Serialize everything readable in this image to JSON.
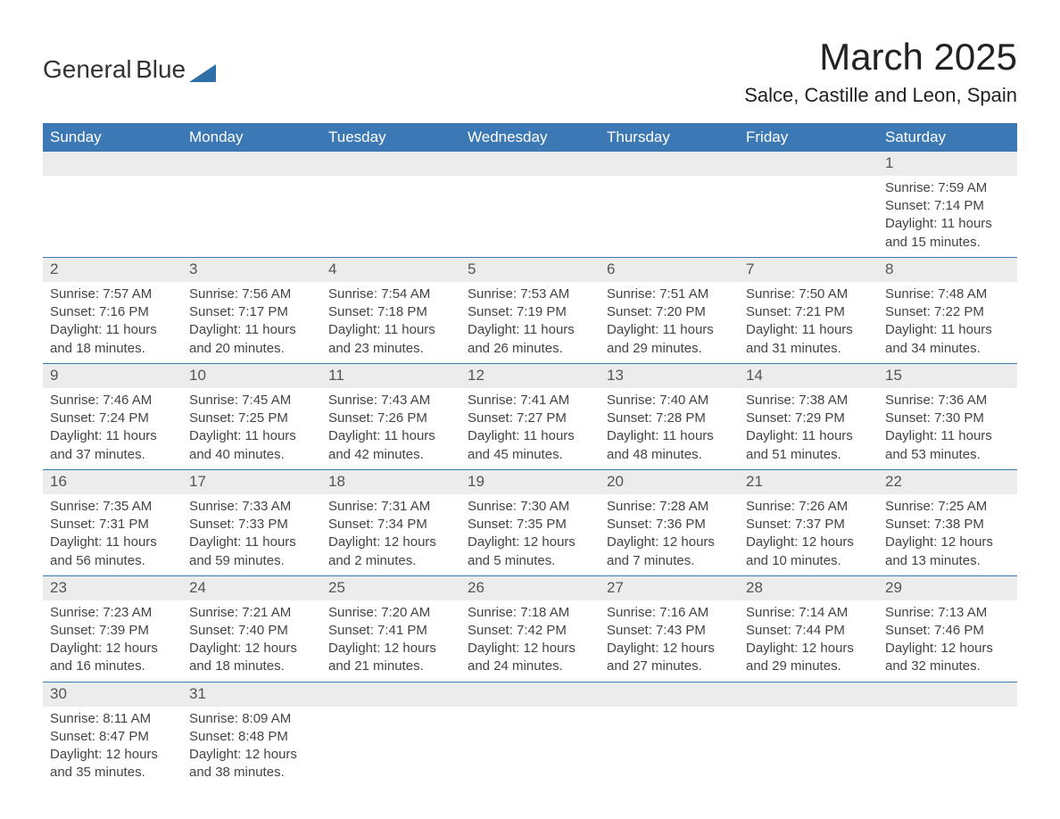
{
  "logo": {
    "word1": "General",
    "word2": "Blue",
    "triangle_color": "#2f6fa8"
  },
  "title": "March 2025",
  "location": "Salce, Castille and Leon, Spain",
  "header_bg": "#3c78b4",
  "header_fg": "#ffffff",
  "daynum_bg": "#ececec",
  "text_color": "#444444",
  "border_color": "#3c78b4",
  "weekdays": [
    "Sunday",
    "Monday",
    "Tuesday",
    "Wednesday",
    "Thursday",
    "Friday",
    "Saturday"
  ],
  "weeks": [
    [
      null,
      null,
      null,
      null,
      null,
      null,
      {
        "n": "1",
        "sr": "Sunrise: 7:59 AM",
        "ss": "Sunset: 7:14 PM",
        "dl": "Daylight: 11 hours and 15 minutes."
      }
    ],
    [
      {
        "n": "2",
        "sr": "Sunrise: 7:57 AM",
        "ss": "Sunset: 7:16 PM",
        "dl": "Daylight: 11 hours and 18 minutes."
      },
      {
        "n": "3",
        "sr": "Sunrise: 7:56 AM",
        "ss": "Sunset: 7:17 PM",
        "dl": "Daylight: 11 hours and 20 minutes."
      },
      {
        "n": "4",
        "sr": "Sunrise: 7:54 AM",
        "ss": "Sunset: 7:18 PM",
        "dl": "Daylight: 11 hours and 23 minutes."
      },
      {
        "n": "5",
        "sr": "Sunrise: 7:53 AM",
        "ss": "Sunset: 7:19 PM",
        "dl": "Daylight: 11 hours and 26 minutes."
      },
      {
        "n": "6",
        "sr": "Sunrise: 7:51 AM",
        "ss": "Sunset: 7:20 PM",
        "dl": "Daylight: 11 hours and 29 minutes."
      },
      {
        "n": "7",
        "sr": "Sunrise: 7:50 AM",
        "ss": "Sunset: 7:21 PM",
        "dl": "Daylight: 11 hours and 31 minutes."
      },
      {
        "n": "8",
        "sr": "Sunrise: 7:48 AM",
        "ss": "Sunset: 7:22 PM",
        "dl": "Daylight: 11 hours and 34 minutes."
      }
    ],
    [
      {
        "n": "9",
        "sr": "Sunrise: 7:46 AM",
        "ss": "Sunset: 7:24 PM",
        "dl": "Daylight: 11 hours and 37 minutes."
      },
      {
        "n": "10",
        "sr": "Sunrise: 7:45 AM",
        "ss": "Sunset: 7:25 PM",
        "dl": "Daylight: 11 hours and 40 minutes."
      },
      {
        "n": "11",
        "sr": "Sunrise: 7:43 AM",
        "ss": "Sunset: 7:26 PM",
        "dl": "Daylight: 11 hours and 42 minutes."
      },
      {
        "n": "12",
        "sr": "Sunrise: 7:41 AM",
        "ss": "Sunset: 7:27 PM",
        "dl": "Daylight: 11 hours and 45 minutes."
      },
      {
        "n": "13",
        "sr": "Sunrise: 7:40 AM",
        "ss": "Sunset: 7:28 PM",
        "dl": "Daylight: 11 hours and 48 minutes."
      },
      {
        "n": "14",
        "sr": "Sunrise: 7:38 AM",
        "ss": "Sunset: 7:29 PM",
        "dl": "Daylight: 11 hours and 51 minutes."
      },
      {
        "n": "15",
        "sr": "Sunrise: 7:36 AM",
        "ss": "Sunset: 7:30 PM",
        "dl": "Daylight: 11 hours and 53 minutes."
      }
    ],
    [
      {
        "n": "16",
        "sr": "Sunrise: 7:35 AM",
        "ss": "Sunset: 7:31 PM",
        "dl": "Daylight: 11 hours and 56 minutes."
      },
      {
        "n": "17",
        "sr": "Sunrise: 7:33 AM",
        "ss": "Sunset: 7:33 PM",
        "dl": "Daylight: 11 hours and 59 minutes."
      },
      {
        "n": "18",
        "sr": "Sunrise: 7:31 AM",
        "ss": "Sunset: 7:34 PM",
        "dl": "Daylight: 12 hours and 2 minutes."
      },
      {
        "n": "19",
        "sr": "Sunrise: 7:30 AM",
        "ss": "Sunset: 7:35 PM",
        "dl": "Daylight: 12 hours and 5 minutes."
      },
      {
        "n": "20",
        "sr": "Sunrise: 7:28 AM",
        "ss": "Sunset: 7:36 PM",
        "dl": "Daylight: 12 hours and 7 minutes."
      },
      {
        "n": "21",
        "sr": "Sunrise: 7:26 AM",
        "ss": "Sunset: 7:37 PM",
        "dl": "Daylight: 12 hours and 10 minutes."
      },
      {
        "n": "22",
        "sr": "Sunrise: 7:25 AM",
        "ss": "Sunset: 7:38 PM",
        "dl": "Daylight: 12 hours and 13 minutes."
      }
    ],
    [
      {
        "n": "23",
        "sr": "Sunrise: 7:23 AM",
        "ss": "Sunset: 7:39 PM",
        "dl": "Daylight: 12 hours and 16 minutes."
      },
      {
        "n": "24",
        "sr": "Sunrise: 7:21 AM",
        "ss": "Sunset: 7:40 PM",
        "dl": "Daylight: 12 hours and 18 minutes."
      },
      {
        "n": "25",
        "sr": "Sunrise: 7:20 AM",
        "ss": "Sunset: 7:41 PM",
        "dl": "Daylight: 12 hours and 21 minutes."
      },
      {
        "n": "26",
        "sr": "Sunrise: 7:18 AM",
        "ss": "Sunset: 7:42 PM",
        "dl": "Daylight: 12 hours and 24 minutes."
      },
      {
        "n": "27",
        "sr": "Sunrise: 7:16 AM",
        "ss": "Sunset: 7:43 PM",
        "dl": "Daylight: 12 hours and 27 minutes."
      },
      {
        "n": "28",
        "sr": "Sunrise: 7:14 AM",
        "ss": "Sunset: 7:44 PM",
        "dl": "Daylight: 12 hours and 29 minutes."
      },
      {
        "n": "29",
        "sr": "Sunrise: 7:13 AM",
        "ss": "Sunset: 7:46 PM",
        "dl": "Daylight: 12 hours and 32 minutes."
      }
    ],
    [
      {
        "n": "30",
        "sr": "Sunrise: 8:11 AM",
        "ss": "Sunset: 8:47 PM",
        "dl": "Daylight: 12 hours and 35 minutes."
      },
      {
        "n": "31",
        "sr": "Sunrise: 8:09 AM",
        "ss": "Sunset: 8:48 PM",
        "dl": "Daylight: 12 hours and 38 minutes."
      },
      null,
      null,
      null,
      null,
      null
    ]
  ]
}
